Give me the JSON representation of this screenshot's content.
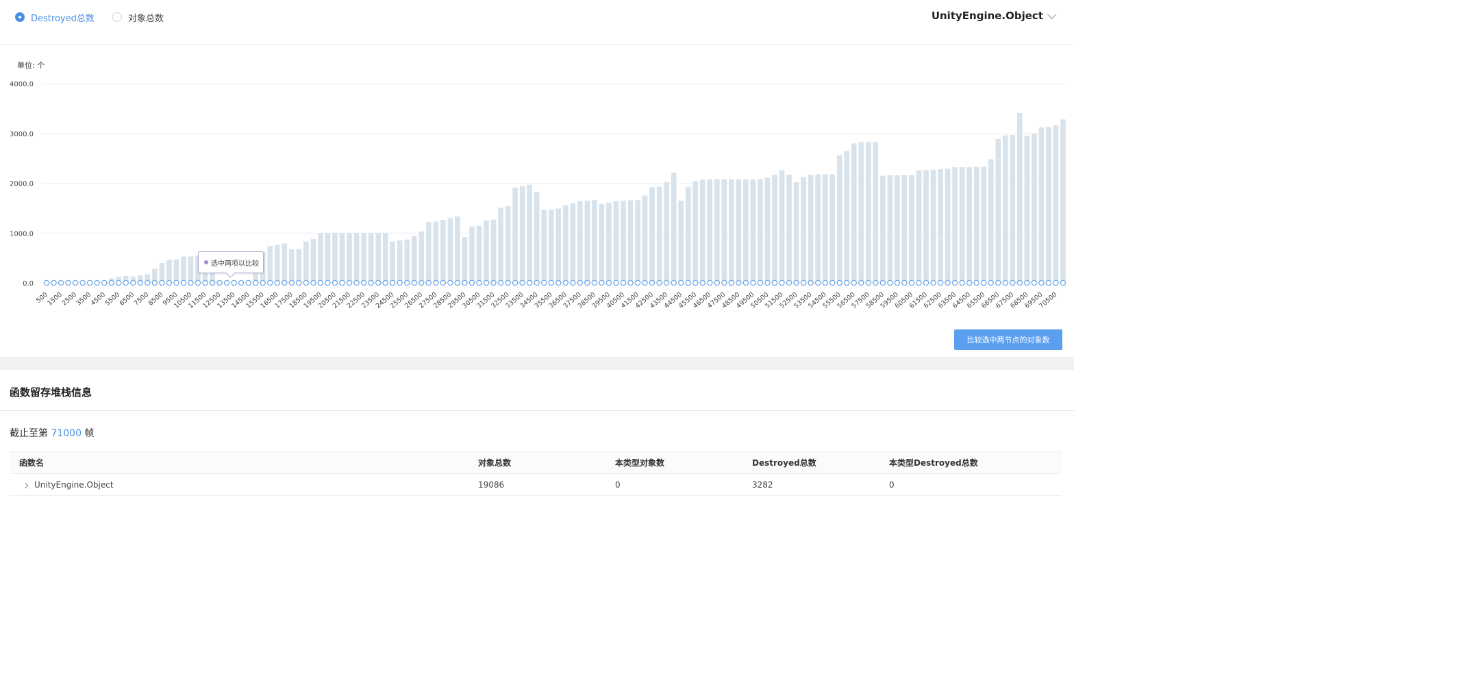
{
  "header": {
    "radio_destroyed": "Destroyed总数",
    "radio_objects": "对象总数",
    "selected_radio": "destroyed",
    "type_selector": "UnityEngine.Object"
  },
  "chart_data": {
    "type": "bar",
    "unit_label": "单位: 个",
    "ylim": [
      0,
      4000
    ],
    "yticks": [
      "4000.0",
      "3000.0",
      "2000.0",
      "1000.0",
      "0.0"
    ],
    "x_labels": [
      "500",
      "1500",
      "2500",
      "3500",
      "4500",
      "5500",
      "6500",
      "7500",
      "8500",
      "9500",
      "10500",
      "11500",
      "12500",
      "13500",
      "14500",
      "15500",
      "16500",
      "17500",
      "18500",
      "19500",
      "20500",
      "21500",
      "22500",
      "23500",
      "24500",
      "25500",
      "26500",
      "27500",
      "28500",
      "29500",
      "30500",
      "31500",
      "32500",
      "33500",
      "34500",
      "35500",
      "36500",
      "37500",
      "38500",
      "39500",
      "40500",
      "41500",
      "42500",
      "43500",
      "44500",
      "45500",
      "46500",
      "47500",
      "48500",
      "49500",
      "50500",
      "51500",
      "52500",
      "53500",
      "54500",
      "55500",
      "56500",
      "57500",
      "58500",
      "59500",
      "60500",
      "61500",
      "62500",
      "63500",
      "64500",
      "65500",
      "66500",
      "67500",
      "68500",
      "69500",
      "70500"
    ],
    "x": [
      500,
      1000,
      1500,
      2000,
      2500,
      3000,
      3500,
      4000,
      4500,
      5000,
      5500,
      6000,
      6500,
      7000,
      7500,
      8000,
      8500,
      9000,
      9500,
      10000,
      10500,
      11000,
      11500,
      12000,
      12500,
      13000,
      13500,
      14000,
      14500,
      15000,
      15500,
      16000,
      16500,
      17000,
      17500,
      18000,
      18500,
      19000,
      19500,
      20000,
      20500,
      21000,
      21500,
      22000,
      22500,
      23000,
      23500,
      24000,
      24500,
      25000,
      25500,
      26000,
      26500,
      27000,
      27500,
      28000,
      28500,
      29000,
      29500,
      30000,
      30500,
      31000,
      31500,
      32000,
      32500,
      33000,
      33500,
      34000,
      34500,
      35000,
      35500,
      36000,
      36500,
      37000,
      37500,
      38000,
      38500,
      39000,
      39500,
      40000,
      40500,
      41000,
      41500,
      42000,
      42500,
      43000,
      43500,
      44000,
      44500,
      45000,
      45500,
      46000,
      46500,
      47000,
      47500,
      48000,
      48500,
      49000,
      49500,
      50000,
      50500,
      51000,
      51500,
      52000,
      52500,
      53000,
      53500,
      54000,
      54500,
      55000,
      55500,
      56000,
      56500,
      57000,
      57500,
      58000,
      58500,
      59000,
      59500,
      60000,
      60500,
      61000,
      61500,
      62000,
      62500,
      63000,
      63500,
      64000,
      64500,
      65000,
      65500,
      66000,
      66500,
      67000,
      67500,
      68000,
      68500,
      69000,
      69500,
      70000,
      70500,
      71000
    ],
    "series": [
      {
        "name": "Destroyed总数",
        "values": [
          0,
          0,
          0,
          0,
          0,
          0,
          0,
          0,
          30,
          90,
          120,
          140,
          130,
          150,
          170,
          280,
          400,
          460,
          470,
          530,
          530,
          540,
          540,
          560,
          0,
          0,
          0,
          0,
          0,
          620,
          620,
          740,
          760,
          790,
          670,
          680,
          830,
          880,
          1000,
          1000,
          1000,
          1000,
          1000,
          1000,
          1000,
          1000,
          1000,
          1000,
          830,
          850,
          870,
          940,
          1030,
          1220,
          1230,
          1260,
          1300,
          1330,
          920,
          1130,
          1140,
          1250,
          1270,
          1510,
          1540,
          1910,
          1940,
          1970,
          1820,
          1460,
          1470,
          1490,
          1560,
          1600,
          1640,
          1650,
          1660,
          1580,
          1610,
          1640,
          1650,
          1660,
          1660,
          1750,
          1920,
          1930,
          2020,
          2210,
          1650,
          1920,
          2040,
          2070,
          2080,
          2080,
          2080,
          2080,
          2080,
          2080,
          2080,
          2080,
          2110,
          2170,
          2260,
          2170,
          2020,
          2120,
          2170,
          2180,
          2180,
          2180,
          2560,
          2650,
          2800,
          2820,
          2830,
          2830,
          2150,
          2160,
          2160,
          2160,
          2160,
          2260,
          2260,
          2270,
          2280,
          2290,
          2320,
          2320,
          2320,
          2330,
          2330,
          2480,
          2890,
          2960,
          2970,
          3410,
          2950,
          2990,
          3120,
          3130,
          3170,
          3280
        ],
        "points": 142
      }
    ],
    "tooltip_text": "选中两项以比较"
  },
  "compare_button": "比较选中两节点的对象数",
  "stack_section": {
    "title": "函数留存堆栈信息",
    "frame_prefix": "截止至第",
    "frame_number": "71000",
    "frame_suffix": "帧"
  },
  "table": {
    "headers": [
      "函数名",
      "对象总数",
      "本类型对象数",
      "Destroyed总数",
      "本类型Destroyed总数"
    ],
    "rows": [
      [
        "UnityEngine.Object",
        "19086",
        "0",
        "3282",
        "0"
      ]
    ]
  },
  "colors": {
    "accent": "#4a90e2",
    "bar": "#d8e3ec",
    "button": "#5b9ff0",
    "point_stroke": "#6fa8e8"
  }
}
